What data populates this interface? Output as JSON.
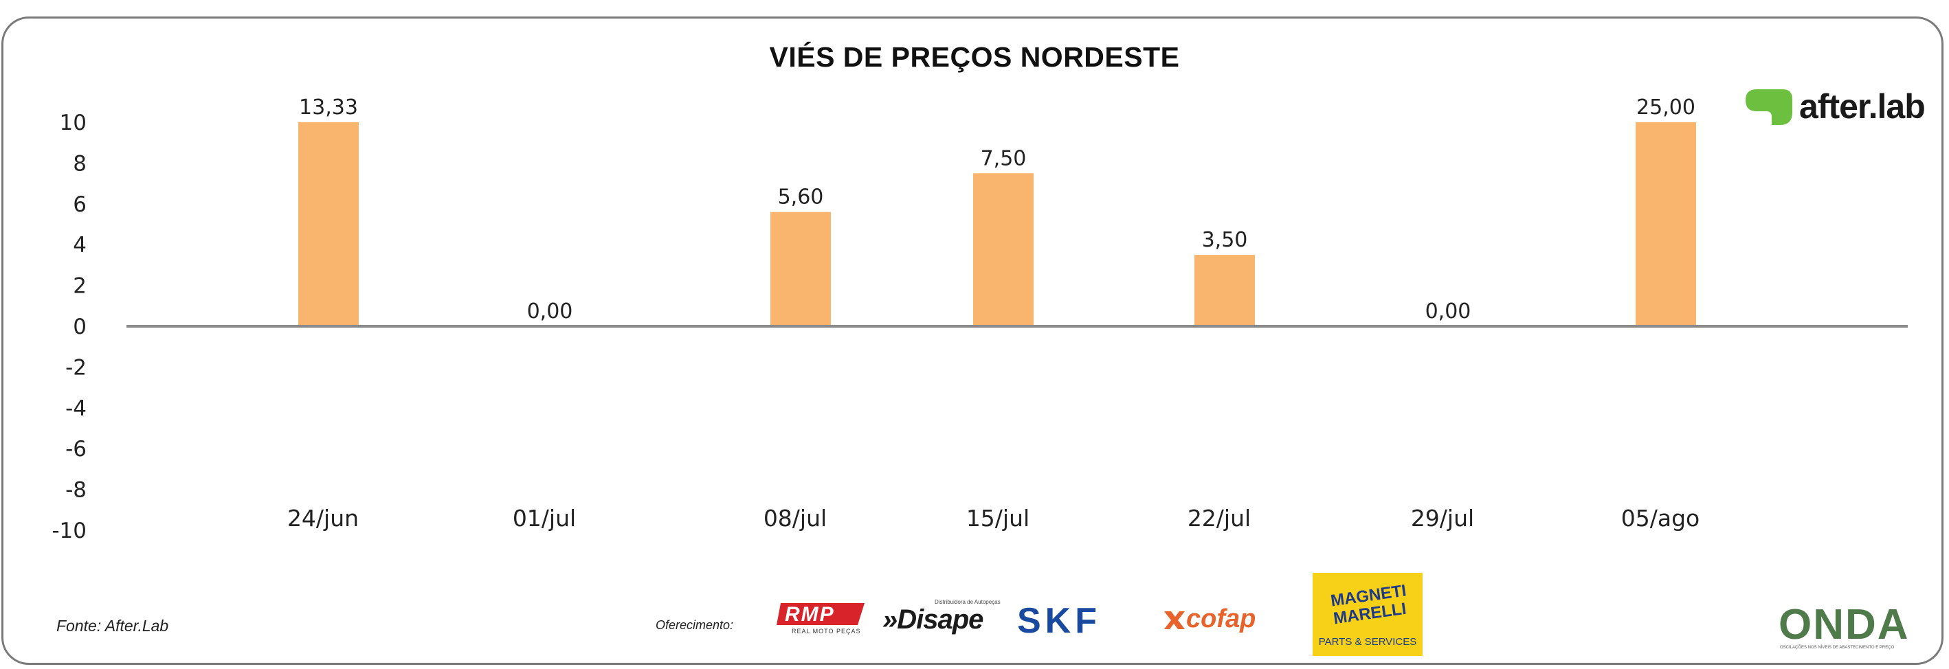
{
  "chart_data": {
    "type": "bar",
    "title": "VIÉS DE PREÇOS NORDESTE",
    "categories": [
      "24/jun",
      "01/jul",
      "08/jul",
      "15/jul",
      "22/jul",
      "29/jul",
      "05/ago"
    ],
    "values": [
      13.33,
      0.0,
      5.6,
      7.5,
      3.5,
      0.0,
      25.0
    ],
    "data_labels": [
      "13,33",
      "0,00",
      "5,60",
      "7,50",
      "3,50",
      "0,00",
      "25,00"
    ],
    "y_ticks": [
      "10",
      "8",
      "6",
      "4",
      "2",
      "0",
      "-2",
      "-4",
      "-6",
      "-8",
      "-10"
    ],
    "ylim": [
      -10,
      10
    ],
    "bar_color": "#f9b46e",
    "grid": false,
    "legend": "none"
  },
  "footer": {
    "source": "Fonte: After.Lab",
    "offer_label": "Oferecimento:"
  },
  "brand": {
    "afterlab": "after.lab",
    "onda": "ONDA",
    "onda_tagline": "OSCILAÇÕES NOS NÍVEIS DE ABASTECIMENTO E PREÇO"
  },
  "sponsors": {
    "rmp": "RMP",
    "rmp_sub": "REAL MOTO PEÇAS",
    "disape": "»Disape",
    "disape_sub": "Distribuidora de Autopeças",
    "skf": "SKF",
    "cofap": "cofap",
    "magneti_1": "MAGNETI",
    "magneti_2": "MARELLI",
    "magneti_3": "PARTS & SERVICES"
  },
  "colors": {
    "accent_green": "#6cbf3f",
    "skf_blue": "#1a4aa0",
    "rmp_red": "#d8232a",
    "cofap_orange": "#e8632b",
    "magneti_yellow": "#f7d117"
  }
}
